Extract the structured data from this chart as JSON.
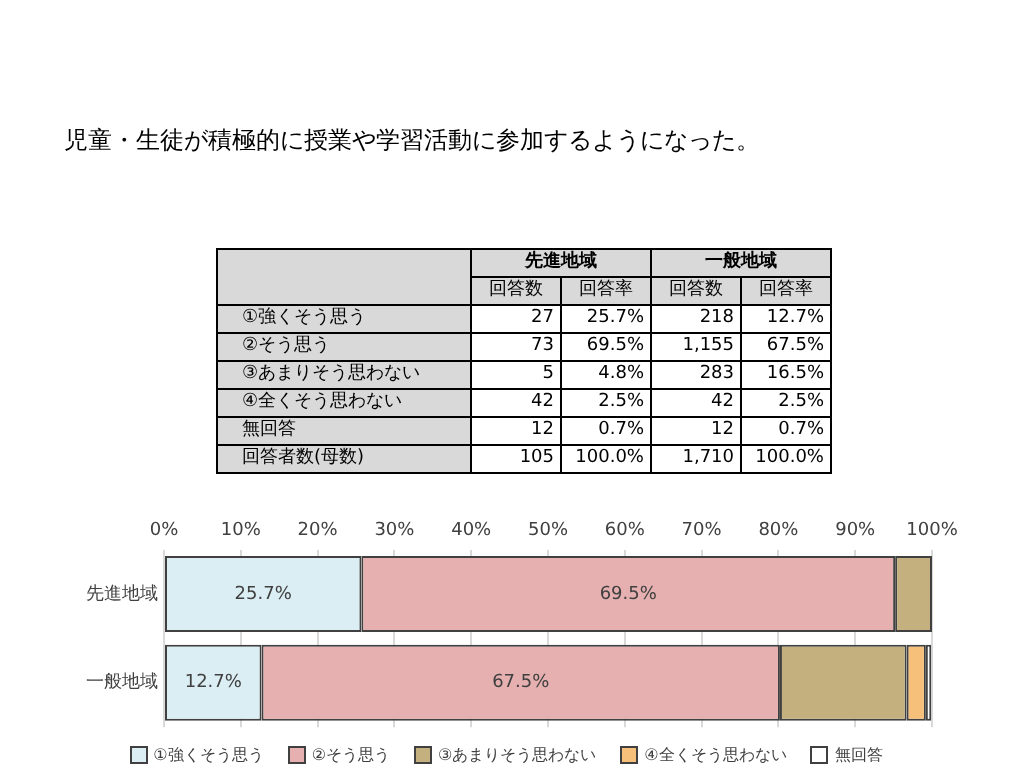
{
  "chart_data": [
    {
      "type": "other",
      "title": "児童・生徒が積極的に授業や学習活動に参加するようになった。",
      "annotations": [
        "先進地域",
        "一般地域"
      ],
      "categories": [
        "①強くそう思う",
        "②そう思う",
        "③あまりそう思わない",
        "④全くそう思わない",
        "無回答",
        "回答者数(母数)"
      ],
      "series": [
        {
          "name": "回答数",
          "values": [
            27,
            73,
            5,
            42,
            12,
            105
          ],
          "value_labels": [
            "27",
            "73",
            "5",
            "42",
            "12",
            "105"
          ]
        },
        {
          "name": "回答率",
          "values": [
            25.7,
            69.5,
            4.8,
            2.5,
            0.7,
            100.0
          ],
          "value_labels": [
            "25.7%",
            "69.5%",
            "4.8%",
            "2.5%",
            "0.7%",
            "100.0%"
          ]
        },
        {
          "name": "回答数",
          "values": [
            218,
            1155,
            283,
            42,
            12,
            1710
          ],
          "value_labels": [
            "218",
            "1,155",
            "283",
            "42",
            "12",
            "1,710"
          ]
        },
        {
          "name": "回答率",
          "values": [
            12.7,
            67.5,
            16.5,
            2.5,
            0.7,
            100.0
          ],
          "value_labels": [
            "12.7%",
            "67.5%",
            "16.5%",
            "2.5%",
            "0.7%",
            "100.0%"
          ]
        }
      ]
    },
    {
      "type": "bar",
      "orientation": "horizontal",
      "stacked": true,
      "categories": [
        "先進地域",
        "一般地域"
      ],
      "series": [
        {
          "name": "①強くそう思う",
          "color": "#dbeef4",
          "values": [
            25.7,
            12.7
          ],
          "value_labels": [
            "25.7%",
            "12.7%"
          ]
        },
        {
          "name": "②そう思う",
          "color": "#e6b0b0",
          "values": [
            69.5,
            67.5
          ],
          "value_labels": [
            "69.5%",
            "67.5%"
          ]
        },
        {
          "name": "③あまりそう思わない",
          "color": "#c4b07f",
          "values": [
            4.8,
            16.5
          ]
        },
        {
          "name": "④全くそう思わない",
          "color": "#f7c07a",
          "values": [
            0,
            2.5
          ]
        },
        {
          "name": "無回答",
          "color": "#ffffff",
          "values": [
            0,
            0.7
          ]
        }
      ],
      "xlim": [
        0,
        100
      ],
      "xticks": [
        {
          "value": 0,
          "label": "0%"
        },
        {
          "value": 10,
          "label": "10%"
        },
        {
          "value": 20,
          "label": "20%"
        },
        {
          "value": 30,
          "label": "30%"
        },
        {
          "value": 40,
          "label": "40%"
        },
        {
          "value": 50,
          "label": "50%"
        },
        {
          "value": 60,
          "label": "60%"
        },
        {
          "value": 70,
          "label": "70%"
        },
        {
          "value": 80,
          "label": "80%"
        },
        {
          "value": 90,
          "label": "90%"
        },
        {
          "value": 100,
          "label": "100%"
        }
      ],
      "grid": "x",
      "legend": "bottom"
    }
  ]
}
